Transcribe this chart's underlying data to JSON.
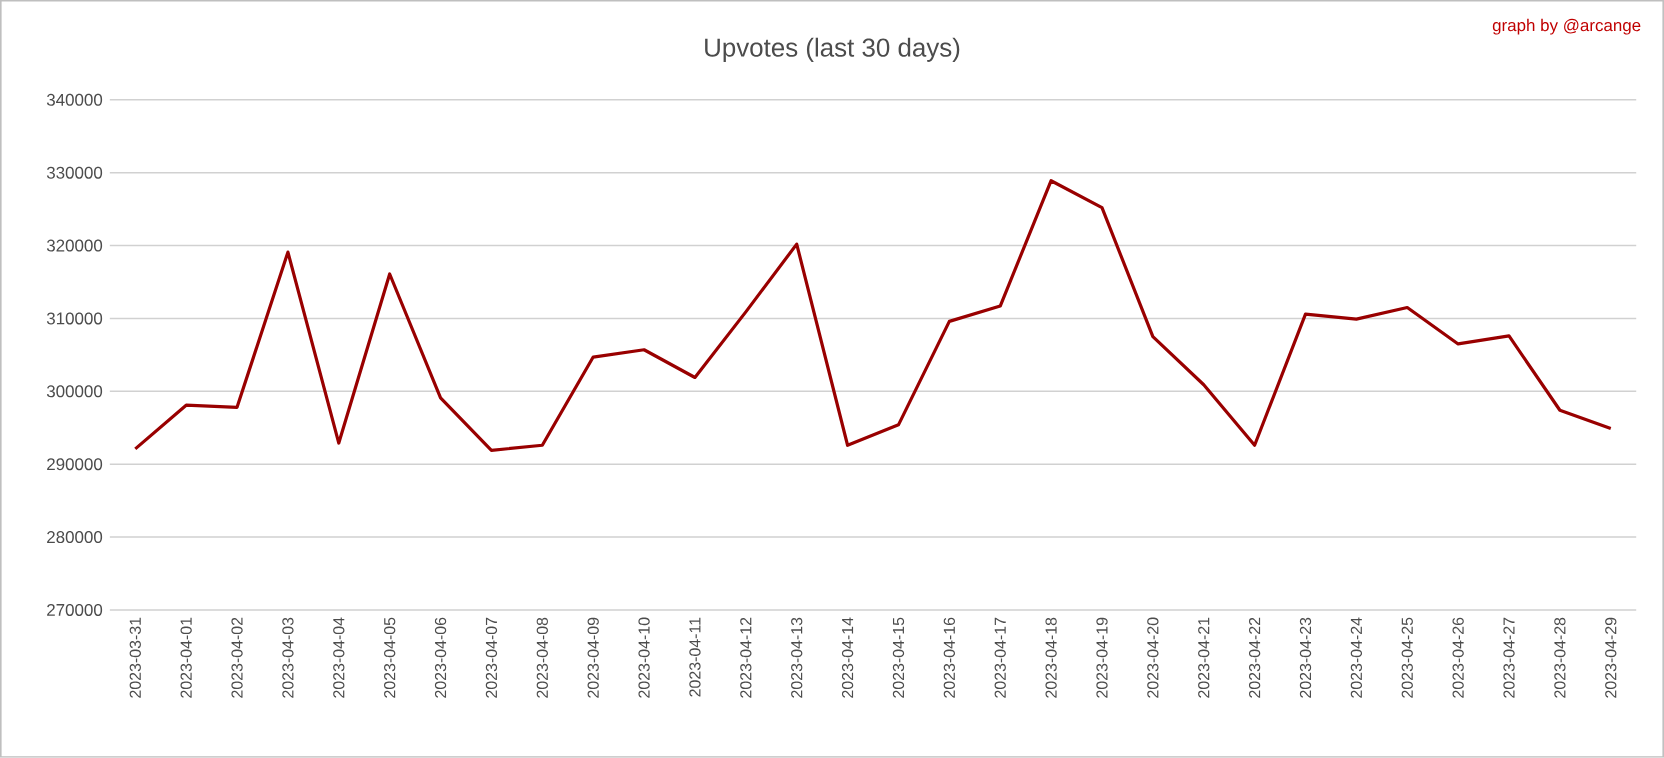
{
  "chart_data": {
    "type": "line",
    "title": "Upvotes (last 30 days)",
    "annotations": [
      "graph by @arcange"
    ],
    "categories": [
      "2023-03-31",
      "2023-04-01",
      "2023-04-02",
      "2023-04-03",
      "2023-04-04",
      "2023-04-05",
      "2023-04-06",
      "2023-04-07",
      "2023-04-08",
      "2023-04-09",
      "2023-04-10",
      "2023-04-11",
      "2023-04-12",
      "2023-04-13",
      "2023-04-14",
      "2023-04-15",
      "2023-04-16",
      "2023-04-17",
      "2023-04-18",
      "2023-04-19",
      "2023-04-20",
      "2023-04-21",
      "2023-04-22",
      "2023-04-23",
      "2023-04-24",
      "2023-04-25",
      "2023-04-26",
      "2023-04-27",
      "2023-04-28",
      "2023-04-29"
    ],
    "series": [
      {
        "color": "#990000",
        "values": [
          292100,
          298100,
          297800,
          319100,
          292900,
          316100,
          299100,
          291900,
          292600,
          304700,
          305700,
          301900,
          310900,
          320200,
          292600,
          295400,
          309600,
          311700,
          328900,
          325200,
          307500,
          300900,
          292600,
          310600,
          309900,
          311500,
          306500,
          307600,
          297400,
          294900
        ]
      }
    ],
    "ylim": [
      270000,
      340000
    ],
    "yticks": [
      270000,
      280000,
      290000,
      300000,
      310000,
      320000,
      330000,
      340000
    ],
    "grid": "y",
    "marker": "none",
    "line_style": "solid"
  }
}
